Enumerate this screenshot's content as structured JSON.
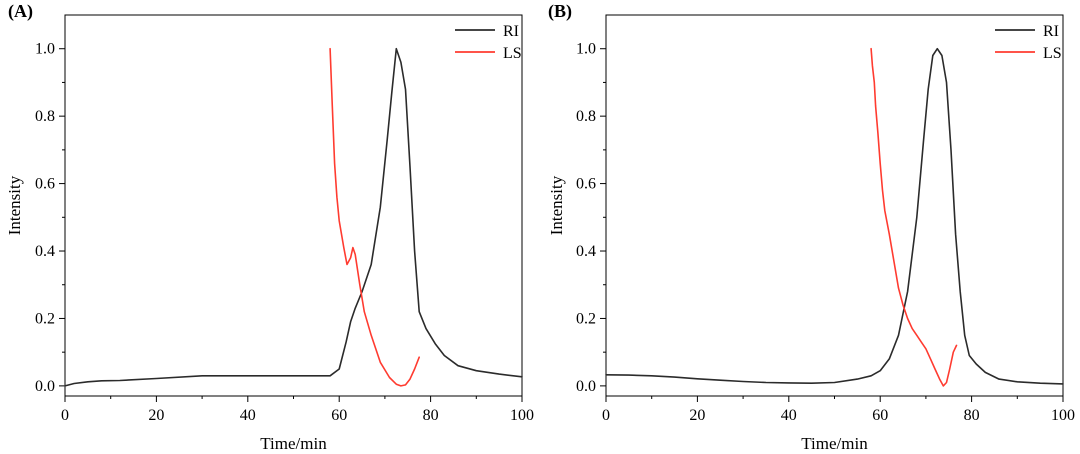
{
  "chart_data": [
    {
      "panel_label": "(A)",
      "type": "line",
      "xlabel": "Time/min",
      "ylabel": "Intensity",
      "xlim": [
        0,
        100
      ],
      "ylim": [
        -0.03,
        1.1
      ],
      "xticks": [
        0,
        20,
        40,
        60,
        80,
        100
      ],
      "yticks": [
        0.0,
        0.2,
        0.4,
        0.6,
        0.8,
        1.0
      ],
      "xtick_labels": [
        "0",
        "20",
        "40",
        "60",
        "80",
        "100"
      ],
      "ytick_labels": [
        "0.0",
        "0.2",
        "0.4",
        "0.6",
        "0.8",
        "1.0"
      ],
      "legend_position": "top-right",
      "grid": false,
      "series": [
        {
          "name": "RI",
          "color": "#2b2b2b",
          "x": [
            0,
            2,
            5,
            8,
            12,
            20,
            30,
            40,
            50,
            58,
            60,
            61.5,
            62.5,
            63.5,
            65,
            67,
            69,
            70.5,
            71.5,
            72.5,
            73.5,
            74.5,
            75.5,
            76.5,
            77.5,
            79,
            81,
            83,
            86,
            90,
            95,
            100
          ],
          "y": [
            0.0,
            0.007,
            0.012,
            0.015,
            0.016,
            0.022,
            0.03,
            0.03,
            0.03,
            0.03,
            0.05,
            0.13,
            0.19,
            0.23,
            0.28,
            0.36,
            0.53,
            0.73,
            0.87,
            1.0,
            0.96,
            0.88,
            0.65,
            0.4,
            0.22,
            0.17,
            0.125,
            0.09,
            0.06,
            0.045,
            0.035,
            0.027
          ]
        },
        {
          "name": "LS",
          "color": "#ff3b30",
          "x": [
            58,
            58.5,
            59,
            59.5,
            60,
            61,
            61.7,
            62.5,
            63,
            63.5,
            64.5,
            65.5,
            67,
            69,
            71,
            72.5,
            73.5,
            74.5,
            75.5,
            76.5,
            77.5
          ],
          "y": [
            1.0,
            0.83,
            0.66,
            0.56,
            0.49,
            0.41,
            0.36,
            0.38,
            0.41,
            0.39,
            0.3,
            0.22,
            0.15,
            0.07,
            0.025,
            0.005,
            0.0,
            0.003,
            0.02,
            0.05,
            0.085
          ]
        }
      ]
    },
    {
      "panel_label": "(B)",
      "type": "line",
      "xlabel": "Time/min",
      "ylabel": "Intensity",
      "xlim": [
        0,
        100
      ],
      "ylim": [
        -0.03,
        1.1
      ],
      "xticks": [
        0,
        20,
        40,
        60,
        80,
        100
      ],
      "yticks": [
        0.0,
        0.2,
        0.4,
        0.6,
        0.8,
        1.0
      ],
      "xtick_labels": [
        "0",
        "20",
        "40",
        "60",
        "80",
        "100"
      ],
      "ytick_labels": [
        "0.0",
        "0.2",
        "0.4",
        "0.6",
        "0.8",
        "1.0"
      ],
      "legend_position": "top-right",
      "grid": false,
      "series": [
        {
          "name": "RI",
          "color": "#2b2b2b",
          "x": [
            0,
            5,
            10,
            15,
            20,
            25,
            30,
            35,
            40,
            45,
            50,
            55,
            58,
            60,
            62,
            64,
            66,
            68,
            69.5,
            70.5,
            71.5,
            72.5,
            73.5,
            74.5,
            75.5,
            76.5,
            77.5,
            78.5,
            79.5,
            81,
            83,
            86,
            90,
            95,
            100
          ],
          "y": [
            0.033,
            0.032,
            0.03,
            0.026,
            0.021,
            0.017,
            0.013,
            0.01,
            0.009,
            0.008,
            0.01,
            0.02,
            0.03,
            0.045,
            0.08,
            0.15,
            0.28,
            0.5,
            0.73,
            0.88,
            0.98,
            1.0,
            0.98,
            0.9,
            0.7,
            0.45,
            0.28,
            0.15,
            0.09,
            0.065,
            0.04,
            0.02,
            0.012,
            0.008,
            0.006
          ]
        },
        {
          "name": "LS",
          "color": "#ff3b30",
          "x": [
            58,
            58.3,
            58.7,
            59,
            59.5,
            60,
            60.5,
            61,
            62,
            63,
            64,
            65,
            66,
            67,
            68,
            69,
            70,
            71,
            72,
            73,
            73.8,
            74.5,
            75.2,
            76,
            76.7
          ],
          "y": [
            1.0,
            0.95,
            0.9,
            0.83,
            0.75,
            0.66,
            0.58,
            0.52,
            0.45,
            0.37,
            0.29,
            0.24,
            0.2,
            0.17,
            0.15,
            0.13,
            0.11,
            0.08,
            0.05,
            0.02,
            0.0,
            0.01,
            0.05,
            0.1,
            0.12
          ]
        }
      ]
    }
  ]
}
